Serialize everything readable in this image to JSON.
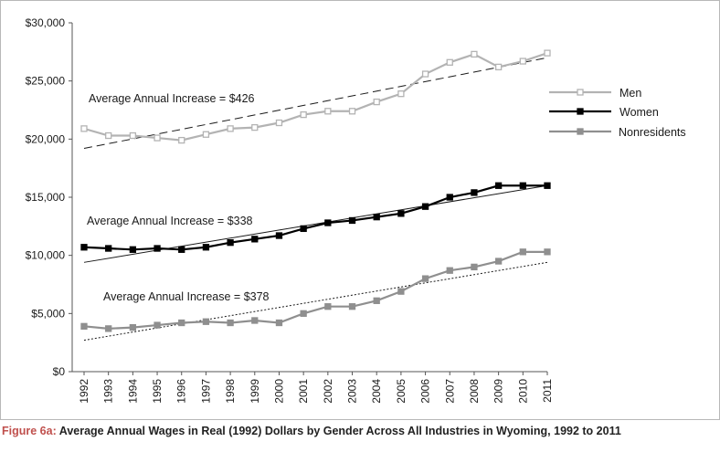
{
  "caption": {
    "figure_label": "Figure 6a:",
    "text": "Average Annual Wages in Real (1992) Dollars by Gender Across All Industries in Wyoming, 1992 to 2011"
  },
  "chart_data": {
    "type": "line",
    "title": "",
    "xlabel": "",
    "ylabel": "",
    "x": [
      1992,
      1993,
      1994,
      1995,
      1996,
      1997,
      1998,
      1999,
      2000,
      2001,
      2002,
      2003,
      2004,
      2005,
      2006,
      2007,
      2008,
      2009,
      2010,
      2011
    ],
    "x_tick_labels": [
      "1992",
      "1993",
      "1994",
      "1995",
      "1996",
      "1997",
      "1998",
      "1999",
      "2000",
      "2001",
      "2002",
      "2003",
      "2004",
      "2005",
      "2006",
      "2007",
      "2008",
      "2009",
      "2010",
      "2011"
    ],
    "ylim": [
      0,
      30000
    ],
    "y_ticks": [
      0,
      5000,
      10000,
      15000,
      20000,
      25000,
      30000
    ],
    "y_tick_labels": [
      "$0",
      "$5,000",
      "$10,000",
      "$15,000",
      "$20,000",
      "$25,000",
      "$30,000"
    ],
    "grid": false,
    "legend_position": "right",
    "series": [
      {
        "name": "Men",
        "color": "#b3b3b3",
        "marker": "hollow-square",
        "values": [
          20900,
          20300,
          20300,
          20100,
          19900,
          20400,
          20900,
          21000,
          21400,
          22100,
          22400,
          22400,
          23200,
          23900,
          25600,
          26600,
          27300,
          26200,
          26700,
          27400
        ]
      },
      {
        "name": "Women",
        "color": "#000000",
        "marker": "filled-square",
        "values": [
          10700,
          10600,
          10500,
          10600,
          10500,
          10700,
          11100,
          11400,
          11700,
          12300,
          12800,
          13000,
          13300,
          13600,
          14200,
          15000,
          15400,
          16000,
          16000,
          16000
        ]
      },
      {
        "name": "Nonresidents",
        "color": "#8f8f8f",
        "marker": "filled-square",
        "values": [
          3900,
          3700,
          3800,
          4000,
          4200,
          4300,
          4200,
          4400,
          4200,
          5000,
          5600,
          5600,
          6100,
          6900,
          8000,
          8700,
          9000,
          9500,
          10300,
          10300
        ]
      }
    ],
    "trendlines": [
      {
        "series": "Men",
        "style": "dashed",
        "color": "#1a1a1a",
        "start_value": 19200,
        "end_value": 27000
      },
      {
        "series": "Women",
        "style": "solid-thin",
        "color": "#1a1a1a",
        "start_value": 9400,
        "end_value": 16000
      },
      {
        "series": "Nonresidents",
        "style": "dotted",
        "color": "#1a1a1a",
        "start_value": 2700,
        "end_value": 9400
      }
    ],
    "annotations": [
      {
        "text": "Average Annual Increase = $426",
        "series": "Men"
      },
      {
        "text": "Average Annual Increase = $338",
        "series": "Women"
      },
      {
        "text": "Average Annual Increase = $378",
        "series": "Nonresidents"
      }
    ]
  }
}
